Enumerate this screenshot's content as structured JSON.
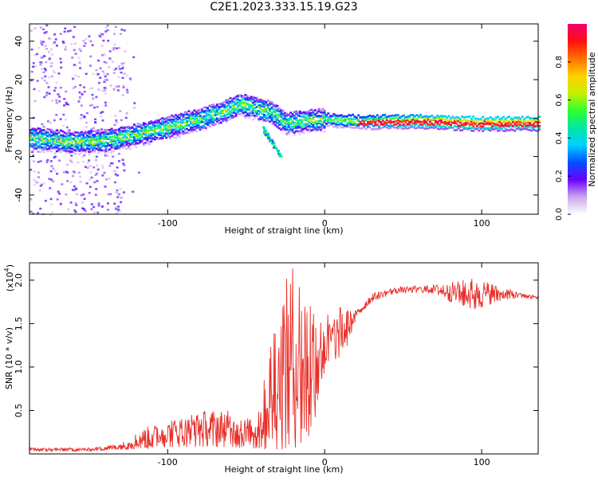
{
  "figure": {
    "title": "C2E1.2023.333.15.19.G23"
  },
  "chart_data": [
    {
      "type": "heatmap",
      "xlabel": "Height of straight line (km)",
      "ylabel": "Frequency (Hz)",
      "xlim": [
        -188,
        136
      ],
      "ylim": [
        -50,
        49
      ],
      "xticks": [
        -100,
        0,
        100
      ],
      "yticks": [
        -40,
        -20,
        0,
        20,
        40
      ],
      "colorbar": {
        "label": "Normalized spectral amplitude",
        "range": [
          0,
          1
        ],
        "ticks": [
          0.0,
          0.2,
          0.4,
          0.6,
          0.8
        ],
        "tick_labels": [
          "0.0",
          "0.2",
          "0.4",
          "0.6",
          "0.8"
        ],
        "colormap": [
          "#ffffff",
          "#c8a6ee",
          "#6a00ff",
          "#0050ff",
          "#00d0ff",
          "#00e8a0",
          "#30ff30",
          "#c8f000",
          "#ffd000",
          "#ff7000",
          "#ff1010",
          "#f00070"
        ]
      },
      "ridge": {
        "description_points": [
          {
            "x": -188,
            "y": -10
          },
          {
            "x": -160,
            "y": -12
          },
          {
            "x": -140,
            "y": -11
          },
          {
            "x": -120,
            "y": -8
          },
          {
            "x": -100,
            "y": -4
          },
          {
            "x": -80,
            "y": 0
          },
          {
            "x": -65,
            "y": 4
          },
          {
            "x": -55,
            "y": 8
          },
          {
            "x": -45,
            "y": 6
          },
          {
            "x": -35,
            "y": 4
          },
          {
            "x": -25,
            "y": -2
          },
          {
            "x": -15,
            "y": -1
          },
          {
            "x": 0,
            "y": 0
          },
          {
            "x": 20,
            "y": -1
          },
          {
            "x": 60,
            "y": -1
          },
          {
            "x": 100,
            "y": -2
          },
          {
            "x": 136,
            "y": -2
          }
        ]
      }
    },
    {
      "type": "line",
      "xlabel": "Height of straight line (km)",
      "ylabel": "SNR (10 * v/v)",
      "y_multiplier": "(x10",
      "y_multiplier_exp": "4",
      "y_multiplier_close": ")",
      "xlim": [
        -188,
        136
      ],
      "ylim": [
        0,
        2.2
      ],
      "xticks": [
        -100,
        0,
        100
      ],
      "yticks": [
        0.5,
        1.0,
        1.5,
        2.0
      ],
      "ytick_labels": [
        "0.5",
        "1.0",
        "1.5",
        "2.0"
      ],
      "color": "#e8302a",
      "series": [
        {
          "values_envelope": [
            {
              "x": -188,
              "low": 0.03,
              "high": 0.07
            },
            {
              "x": -150,
              "low": 0.03,
              "high": 0.07
            },
            {
              "x": -130,
              "low": 0.05,
              "high": 0.12
            },
            {
              "x": -115,
              "low": 0.05,
              "high": 0.3
            },
            {
              "x": -100,
              "low": 0.08,
              "high": 0.4
            },
            {
              "x": -80,
              "low": 0.08,
              "high": 0.5
            },
            {
              "x": -60,
              "low": 0.08,
              "high": 0.5
            },
            {
              "x": -45,
              "low": 0.05,
              "high": 0.4
            },
            {
              "x": -38,
              "low": 0.05,
              "high": 0.9
            },
            {
              "x": -30,
              "low": 0.05,
              "high": 1.8
            },
            {
              "x": -20,
              "low": 0.05,
              "high": 2.2
            },
            {
              "x": -10,
              "low": 0.1,
              "high": 1.9
            },
            {
              "x": 0,
              "low": 0.9,
              "high": 1.6
            },
            {
              "x": 10,
              "low": 1.0,
              "high": 1.7
            },
            {
              "x": 20,
              "low": 1.55,
              "high": 1.65
            },
            {
              "x": 30,
              "low": 1.75,
              "high": 1.85
            },
            {
              "x": 45,
              "low": 1.85,
              "high": 1.92
            },
            {
              "x": 70,
              "low": 1.85,
              "high": 1.95
            },
            {
              "x": 80,
              "low": 1.75,
              "high": 1.98
            },
            {
              "x": 95,
              "low": 1.65,
              "high": 2.03
            },
            {
              "x": 110,
              "low": 1.75,
              "high": 1.95
            },
            {
              "x": 125,
              "low": 1.8,
              "high": 1.85
            },
            {
              "x": 136,
              "low": 1.78,
              "high": 1.82
            }
          ]
        }
      ]
    }
  ]
}
